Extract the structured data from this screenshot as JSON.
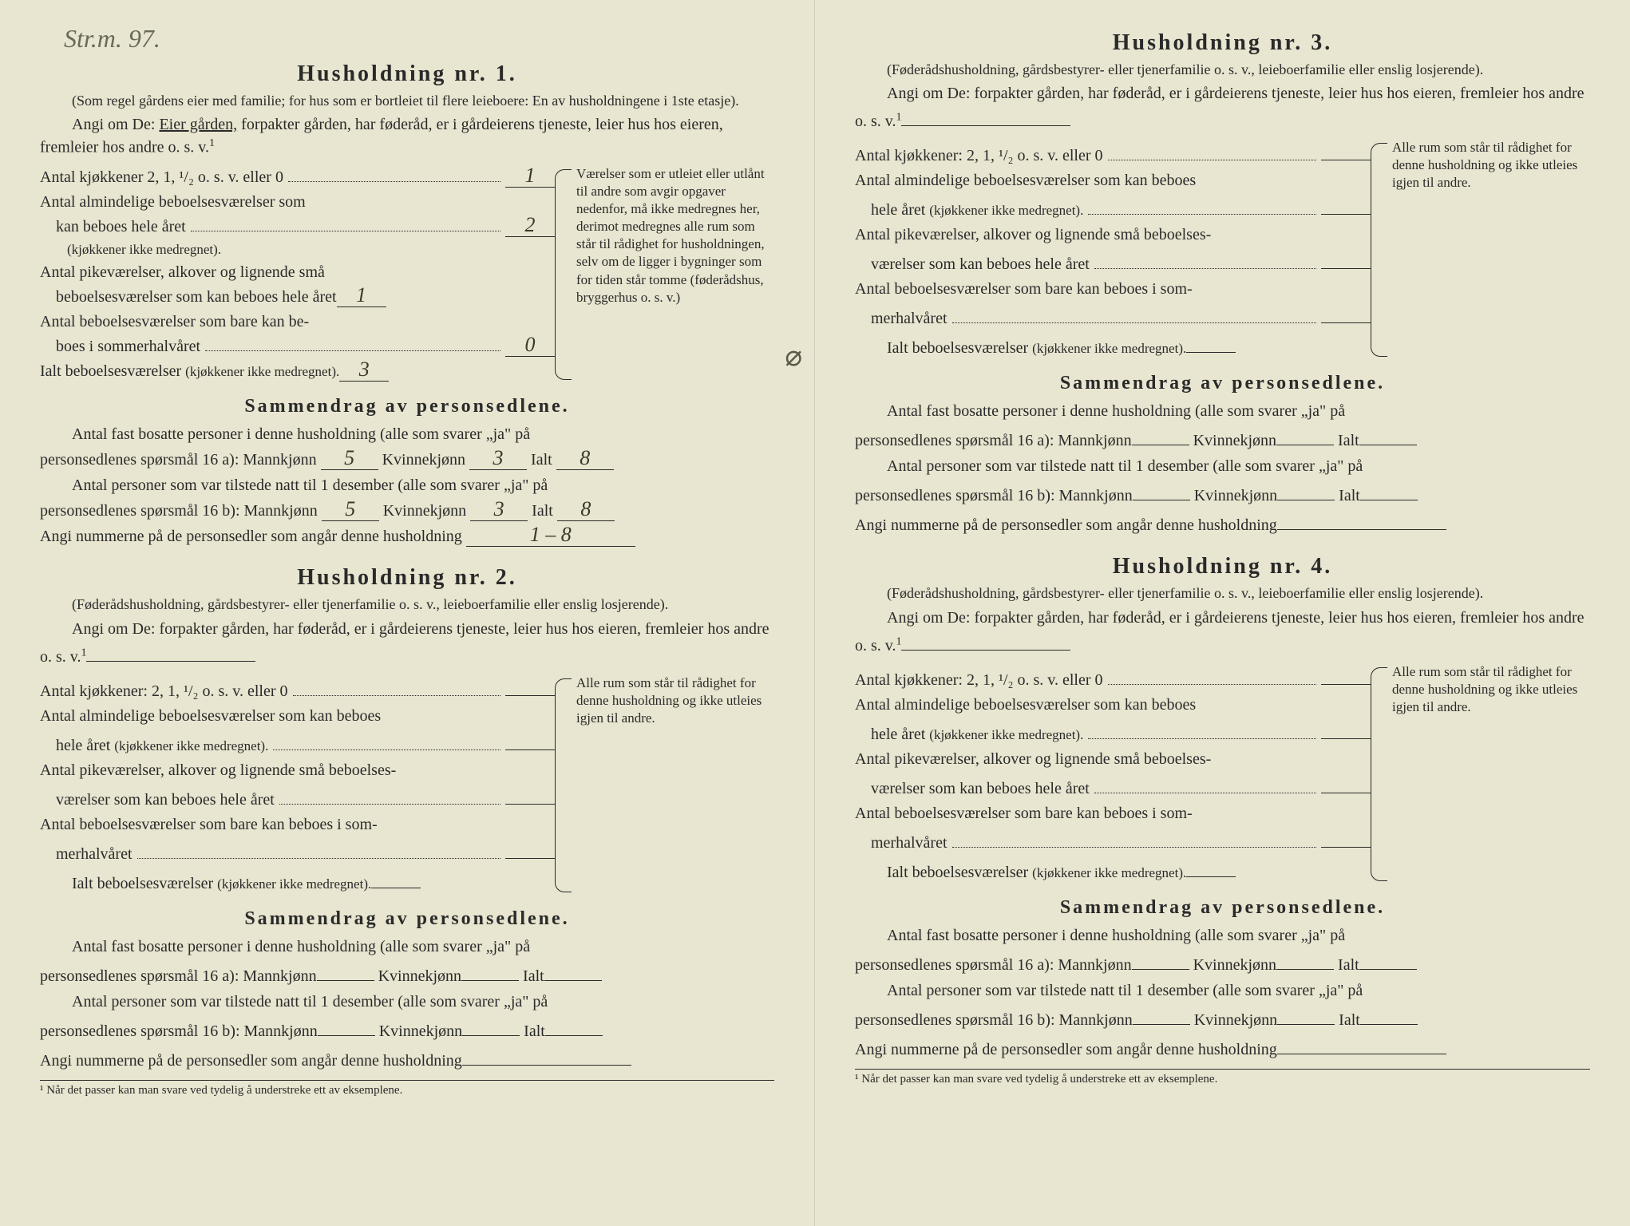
{
  "handwriting_top": "Str.m. 97.",
  "households": [
    {
      "title": "Husholdning nr. 1.",
      "subtitle": "(Som regel gårdens eier med familie; for hus som er bortleiet til flere leieboere: En av husholdningene i 1ste etasje).",
      "intro_prefix": "Angi om De:",
      "intro_underlined": "Eier gården,",
      "intro_rest": "forpakter gården, har føderåd, er i gårdeierens tjeneste, leier hus hos eieren, fremleier hos andre o. s. v.",
      "sup": "1",
      "line_kjokkener": "Antal kjøkkener 2, 1, ¹/₂ o. s. v. eller 0",
      "val_kjokkener": "1",
      "line_almindelige_a": "Antal almindelige beboelsesværelser som",
      "line_almindelige_b": "kan beboes hele året",
      "line_almindelige_paren": "(kjøkkener ikke medregnet).",
      "val_almindelige": "2",
      "line_pike_a": "Antal pikeværelser, alkover og lignende små",
      "line_pike_b": "beboelsesværelser som kan beboes hele året",
      "val_pike": "1",
      "line_sommer_a": "Antal beboelsesværelser som bare kan be-",
      "line_sommer_b": "boes i sommerhalvåret",
      "val_sommer": "0",
      "line_ialt": "Ialt beboelsesværelser",
      "line_ialt_paren": "(kjøkkener ikke medregnet).",
      "val_ialt": "3",
      "side_note": "Værelser som er utleiet eller utlånt til andre som avgir opgaver nedenfor, må ikke medregnes her, derimot medregnes alle rum som står til rådighet for husholdningen, selv om de ligger i bygninger som for tiden står tomme (føderådshus, bryggerhus o. s. v.)",
      "summary_title": "Sammendrag av personsedlene.",
      "sum_fast_a": "Antal fast bosatte personer i denne husholdning (alle som svarer „ja\" på",
      "sum_fast_b": "personsedlenes spørsmål 16 a): Mannkjønn",
      "val_mann_a": "5",
      "sum_kvinn": "Kvinnekjønn",
      "val_kvinn_a": "3",
      "sum_ialt": "Ialt",
      "val_ialt_a": "8",
      "sum_tilstede_a": "Antal personer som var tilstede natt til 1 desember (alle som svarer „ja\" på",
      "sum_tilstede_b": "personsedlenes spørsmål 16 b): Mannkjønn",
      "val_mann_b": "5",
      "val_kvinn_b": "3",
      "val_ialt_b": "8",
      "sum_numrene": "Angi nummerne på de personsedler som angår denne husholdning",
      "val_numrene": "1 – 8"
    },
    {
      "title": "Husholdning nr. 2.",
      "subtitle": "(Føderådshusholdning, gårdsbestyrer- eller tjenerfamilie o. s. v., leieboerfamilie eller enslig losjerende).",
      "intro_prefix": "Angi om De:",
      "intro_rest": "forpakter gården, har føderåd, er i gårdeierens tjeneste, leier hus hos eieren, fremleier hos andre o. s. v.",
      "sup": "1",
      "line_kjokkener": "Antal kjøkkener: 2, 1, ¹/₂ o. s. v. eller 0",
      "line_almindelige_a": "Antal almindelige beboelsesværelser som kan beboes",
      "line_almindelige_b": "hele året",
      "line_almindelige_paren": "(kjøkkener ikke medregnet).",
      "line_pike_a": "Antal pikeværelser, alkover og lignende små beboelses-",
      "line_pike_b": "værelser som kan beboes hele året",
      "line_sommer_a": "Antal beboelsesværelser som bare kan beboes i som-",
      "line_sommer_b": "merhalvåret",
      "line_ialt": "Ialt beboelsesværelser",
      "line_ialt_paren": "(kjøkkener ikke medregnet).",
      "side_note": "Alle rum som står til rådighet for denne husholdning og ikke utleies igjen til andre.",
      "summary_title": "Sammendrag av personsedlene.",
      "sum_fast_a": "Antal fast bosatte personer i denne husholdning (alle som svarer „ja\" på",
      "sum_fast_b": "personsedlenes spørsmål 16 a): Mannkjønn",
      "sum_kvinn": "Kvinnekjønn",
      "sum_ialt": "Ialt",
      "sum_tilstede_a": "Antal personer som var tilstede natt til 1 desember (alle som svarer „ja\" på",
      "sum_tilstede_b": "personsedlenes spørsmål 16 b): Mannkjønn",
      "sum_numrene": "Angi nummerne på de personsedler som angår denne husholdning",
      "footnote": "¹ Når det passer kan man svare ved tydelig å understreke ett av eksemplene."
    },
    {
      "title": "Husholdning nr. 3.",
      "subtitle": "(Føderådshusholdning, gårdsbestyrer- eller tjenerfamilie o. s. v., leieboerfamilie eller enslig losjerende).",
      "intro_prefix": "Angi om De:",
      "intro_rest": "forpakter gården, har føderåd, er i gårdeierens tjeneste, leier hus hos eieren, fremleier hos andre o. s. v.",
      "sup": "1",
      "line_kjokkener": "Antal kjøkkener: 2, 1, ¹/₂ o. s. v. eller 0",
      "line_almindelige_a": "Antal almindelige beboelsesværelser som kan beboes",
      "line_almindelige_b": "hele året",
      "line_almindelige_paren": "(kjøkkener ikke medregnet).",
      "line_pike_a": "Antal pikeværelser, alkover og lignende små beboelses-",
      "line_pike_b": "værelser som kan beboes hele året",
      "line_sommer_a": "Antal beboelsesværelser som bare kan beboes i som-",
      "line_sommer_b": "merhalvåret",
      "line_ialt": "Ialt beboelsesværelser",
      "line_ialt_paren": "(kjøkkener ikke medregnet).",
      "side_note": "Alle rum som står til rådighet for denne husholdning og ikke utleies igjen til andre.",
      "summary_title": "Sammendrag av personsedlene.",
      "sum_fast_a": "Antal fast bosatte personer i denne husholdning (alle som svarer „ja\" på",
      "sum_fast_b": "personsedlenes spørsmål 16 a): Mannkjønn",
      "sum_kvinn": "Kvinnekjønn",
      "sum_ialt": "Ialt",
      "sum_tilstede_a": "Antal personer som var tilstede natt til 1 desember (alle som svarer „ja\" på",
      "sum_tilstede_b": "personsedlenes spørsmål 16 b): Mannkjønn",
      "sum_numrene": "Angi nummerne på de personsedler som angår denne husholdning"
    },
    {
      "title": "Husholdning nr. 4.",
      "subtitle": "(Føderådshusholdning, gårdsbestyrer- eller tjenerfamilie o. s. v., leieboerfamilie eller enslig losjerende).",
      "intro_prefix": "Angi om De:",
      "intro_rest": "forpakter gården, har føderåd, er i gårdeierens tjeneste, leier hus hos eieren, fremleier hos andre o. s. v.",
      "sup": "1",
      "line_kjokkener": "Antal kjøkkener: 2, 1, ¹/₂ o. s. v. eller 0",
      "line_almindelige_a": "Antal almindelige beboelsesværelser som kan beboes",
      "line_almindelige_b": "hele året",
      "line_almindelige_paren": "(kjøkkener ikke medregnet).",
      "line_pike_a": "Antal pikeværelser, alkover og lignende små beboelses-",
      "line_pike_b": "værelser som kan beboes hele året",
      "line_sommer_a": "Antal beboelsesværelser som bare kan beboes i som-",
      "line_sommer_b": "merhalvåret",
      "line_ialt": "Ialt beboelsesværelser",
      "line_ialt_paren": "(kjøkkener ikke medregnet).",
      "side_note": "Alle rum som står til rådighet for denne husholdning og ikke utleies igjen til andre.",
      "summary_title": "Sammendrag av personsedlene.",
      "sum_fast_a": "Antal fast bosatte personer i denne husholdning (alle som svarer „ja\" på",
      "sum_fast_b": "personsedlenes spørsmål 16 a): Mannkjønn",
      "sum_kvinn": "Kvinnekjønn",
      "sum_ialt": "Ialt",
      "sum_tilstede_a": "Antal personer som var tilstede natt til 1 desember (alle som svarer „ja\" på",
      "sum_tilstede_b": "personsedlenes spørsmål 16 b): Mannkjønn",
      "sum_numrene": "Angi nummerne på de personsedler som angår denne husholdning",
      "footnote": "¹ Når det passer kan man svare ved tydelig å understreke ett av eksemplene."
    }
  ],
  "side_handwriting": "⌀"
}
